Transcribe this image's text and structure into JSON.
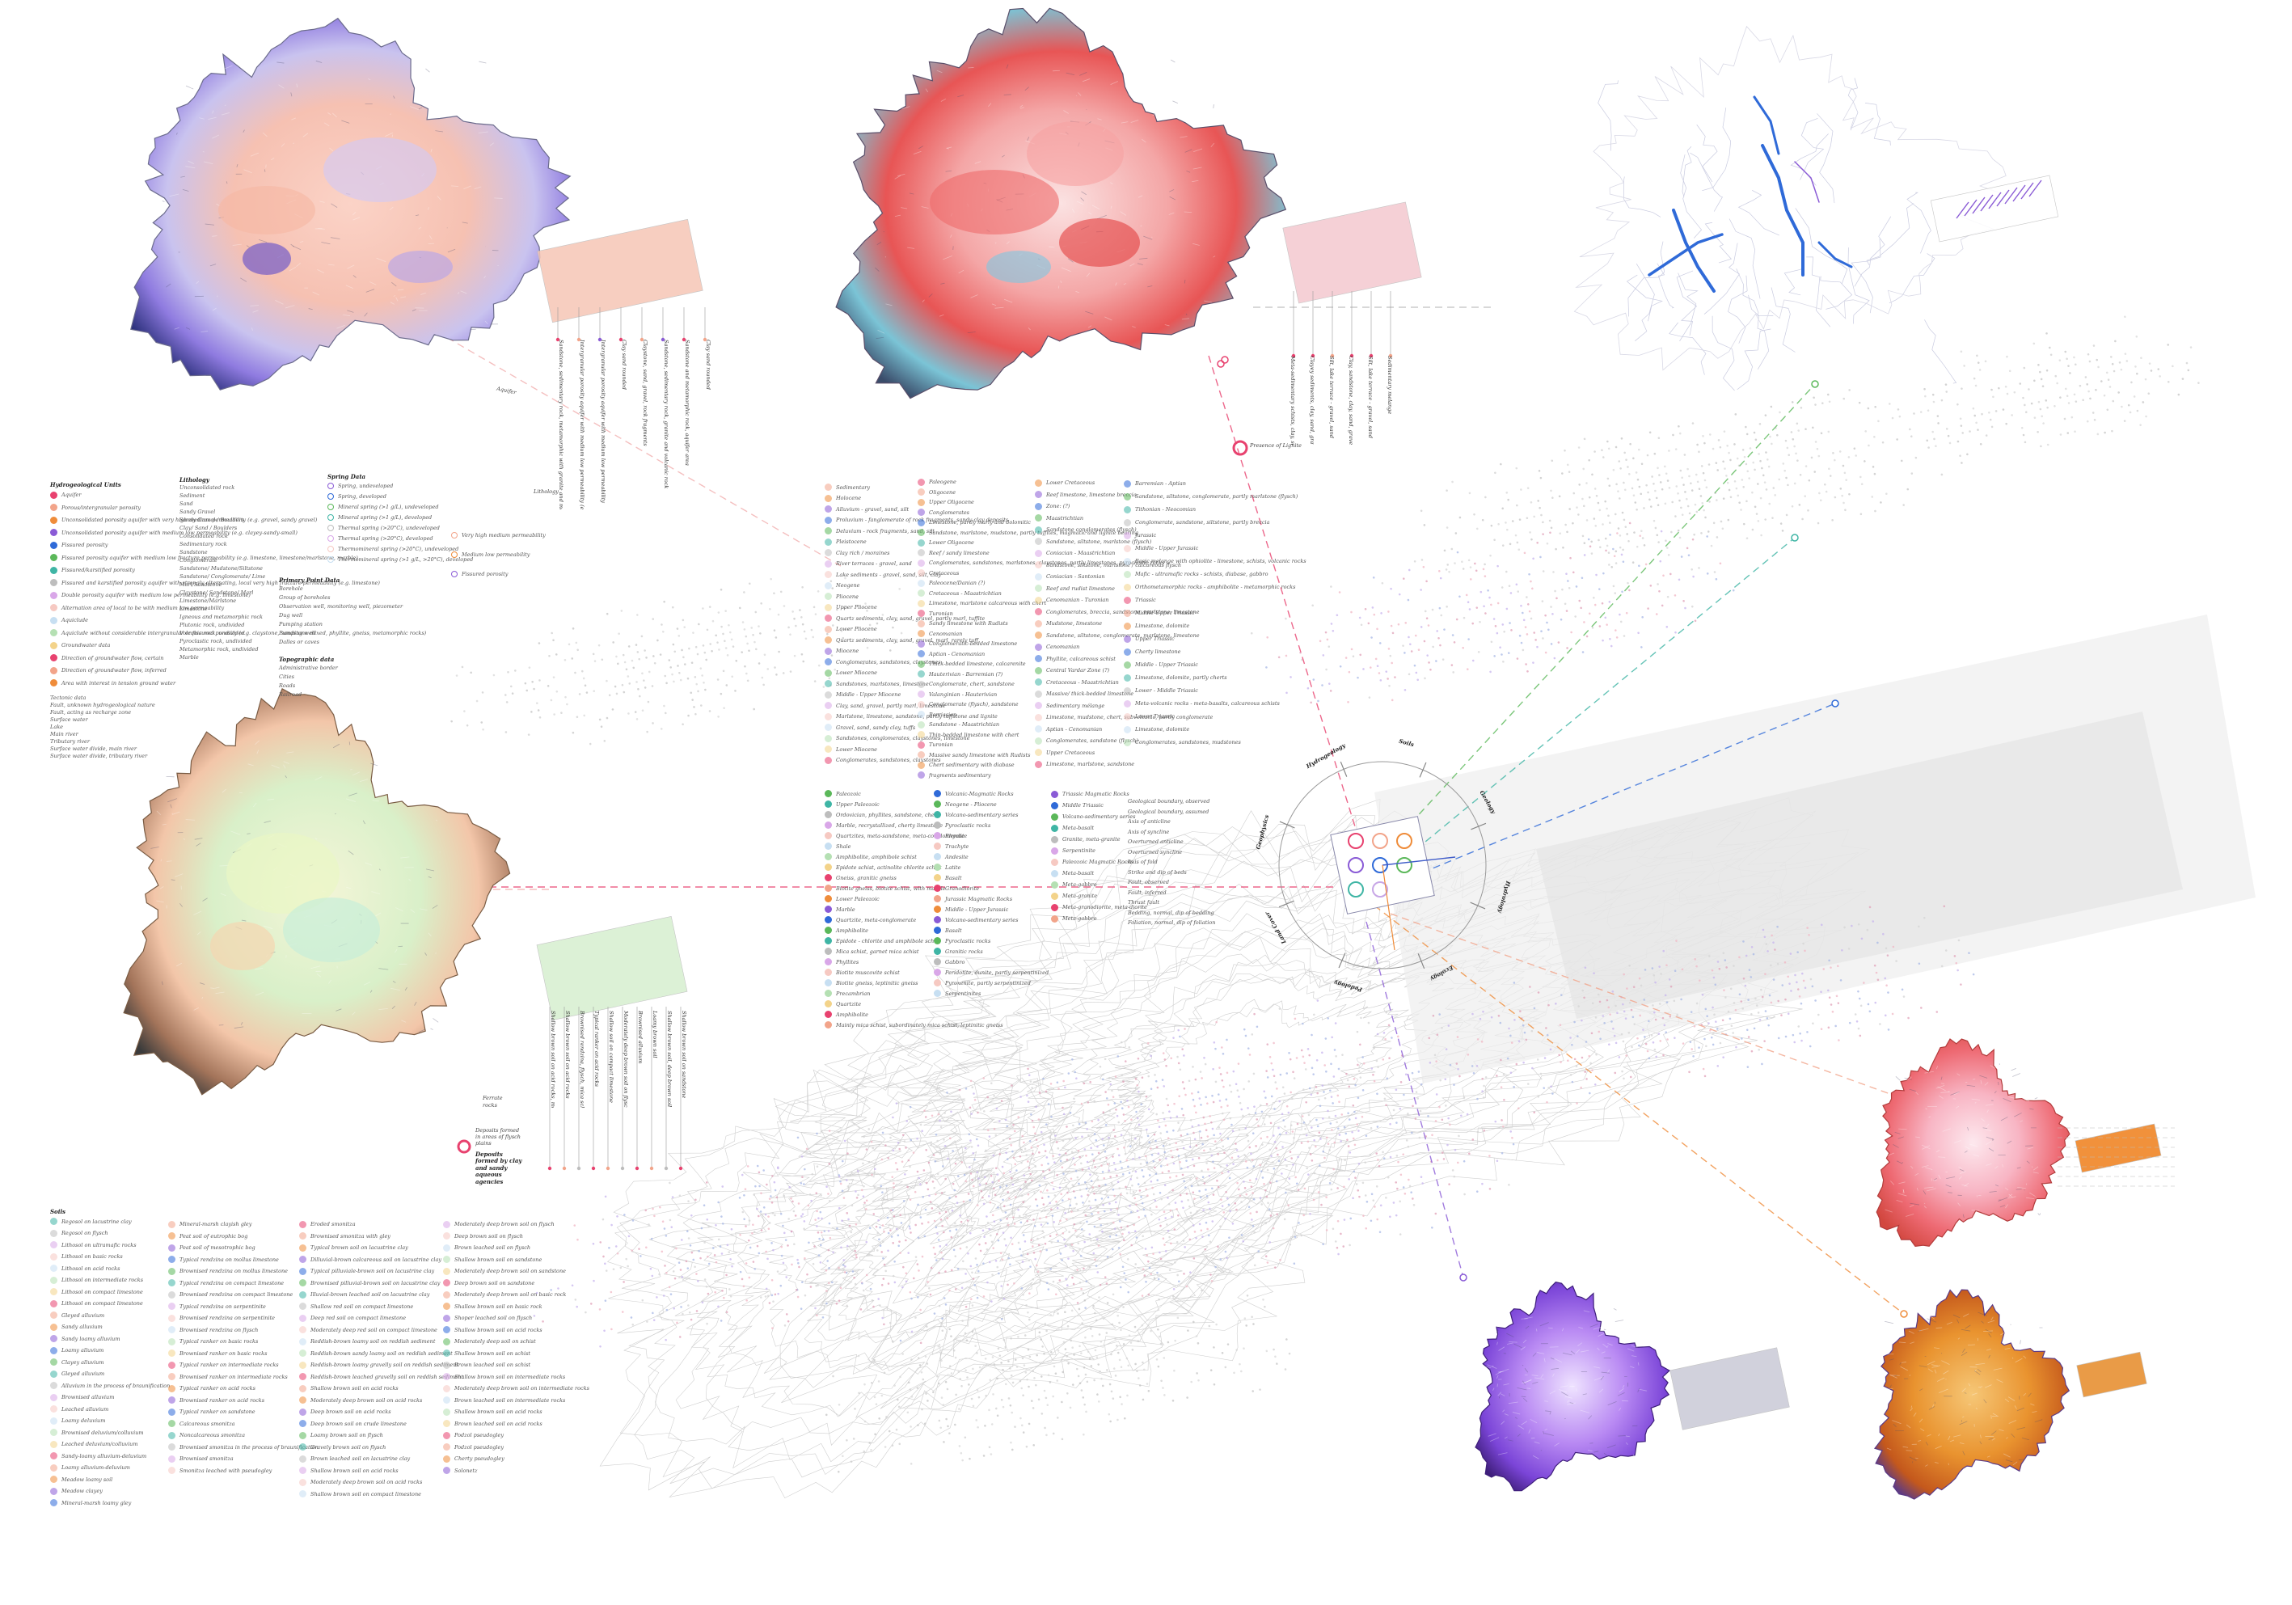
{
  "colors": {
    "pink": "#e8426f",
    "salmon": "#f2a48a",
    "orange": "#ef8c3a",
    "purple": "#8a5bd6",
    "blue": "#2f6ad8",
    "green": "#5bb85a",
    "teal": "#3fb5a5",
    "grey": "#bdbdbd"
  },
  "hydro": {
    "title": "Hydrogeological Units",
    "items": [
      "Aquifer",
      "Porous/intergranular porosity",
      "Unconsolidated porosity aquifer with very high medium permeability (e.g. gravel, sandy gravel)",
      "Unconsolidated porosity aquifer with medium low permeability (e.g. clayey-sandy-small)",
      "Fissured porosity",
      "Fissured porosity aquifer with medium low fracture permeability (e.g. limestone, limestone/marlstone, marble)",
      "Fissured/karstified porosity",
      "Fissured and karstified porosity aquifer with strongly alternating, local very high fracture permeability (e.g. limestone)",
      "Double porosity aquifer with medium low permeability (e.g. limestone)",
      "Alternation area of local to be with medium low permeability",
      "Aquiclude",
      "Aquiclude without considerable intergranular or fissured porosity (e.g. claystone, sandstone mixed, phyllite, gneiss, metamorphic rocks)",
      "Groundwater data",
      "Direction of groundwater flow, certain",
      "Direction of groundwater flow, inferred",
      "Area with interest in tension ground water"
    ]
  },
  "surface": {
    "items": [
      "Tectonic data",
      "Fault, unknown hydrogeological nature",
      "Fault, acting as recharge zone",
      "Surface water",
      "Lake",
      "Main river",
      "Tributary river",
      "Surface water divide, main river",
      "Surface water divide, tributary river"
    ]
  },
  "lithology": {
    "title": "Lithology",
    "items": [
      "Unconsolidated rock",
      "Sediment",
      "Sand",
      "Sandy Gravel",
      "Sandy Gravel / Boulders",
      "Clay/ Sand / Boulders",
      "Consolidated rock",
      "Sedimentary rock",
      "Sandstone",
      "Conglomerate",
      "Sandstone/ Mudstone/Siltstone",
      "Sandstone/ Conglomerate/ Lime",
      "Marl/Sandstone",
      "Claystone/ Sandstone/ Marl",
      "Limestone/Marlstone",
      "Limestone",
      "Igneous and metamorphic rock",
      "Plutonic rock, undivided",
      "Volcanic rock, undivided",
      "Pyroclastic rock, undivided",
      "Metamorphic rock, undivided",
      "Marble"
    ]
  },
  "springs": {
    "title": "Spring Data",
    "items": [
      "Spring, undeveloped",
      "Spring, developed",
      "Mineral spring (>1 g/L), undeveloped",
      "Mineral spring (>1 g/L), developed",
      "Thermal spring (>20°C), undeveloped",
      "Thermal spring (>20°C), developed",
      "Thermomineral spring (>20°C), undeveloped",
      "Thermomineral spring (>1 g/L, >20°C), developed"
    ]
  },
  "primary": {
    "title": "Primary Point Data",
    "items": [
      "Borehole",
      "Group of boreholes",
      "Observation well, monitoring well, piezometer",
      "Dug well",
      "Pumping station",
      "Pumping well",
      "Dalles or caves"
    ]
  },
  "topo": {
    "title": "Topographic data",
    "items": [
      "Administrative border",
      "Cities",
      "Roads",
      "Railroad"
    ]
  },
  "sideLegendTop": {
    "items": [
      "Very high medium permeability",
      "Medium low permeability",
      "Fissured porosity"
    ]
  },
  "geology": {
    "col1": [
      "Sedimentary",
      "Holocene",
      "Alluvium - gravel, sand, silt",
      "Proluvium - fanglomerate of rock fragments, sandy clay deposits",
      "Deluvium - rock fragments, sand, silt",
      "Pleistocene",
      "Clay rich / moraines",
      "River terraces - gravel, sand",
      "Lake sediments - gravel, sand, silt, clay",
      "Neogene",
      "Pliocene",
      "Upper Pliocene",
      "Quartz sediments, clay, sand, gravel, partly marl, tuffite",
      "Lower Pliocene",
      "Quartz sediments, clay, sand, gravel, marl, rarely tuff",
      "Miocene",
      "Conglomerates, sandstones, claystones",
      "Lower Miocene",
      "Sandstones, marlstones, limestone",
      "Middle - Upper Miocene",
      "Clay, sand, gravel, partly marl, limestone",
      "Marlstone, limestone, sandstone, partly tuffstone and lignite",
      "Gravel, sand, sandy clay, tuffs",
      "Sandstones, conglomerates, claystones, limestone",
      "Lower Miocene",
      "Conglomerates, sandstones, claystones"
    ],
    "col2": [
      "Paleogene",
      "Oligocene",
      "Upper Oligocene",
      "Conglomerates",
      "Limestone, partly marly and dolomitic",
      "Sandstone, marlstone, mudstone, partly tuffites, magmatic and lignite bearing",
      "Lower Oligocene",
      "Reef / sandy limestone",
      "Conglomerates, sandstones, marlstones, claystones, partly limestones, pyroclastic rocks",
      "Cretaceous",
      "Paleocene/Danian (?)",
      "Cretaceous - Maastrichtian",
      "Limestone, marlstone calcareous with chert",
      "Turonian",
      "Sandy limestone with Rudists",
      "Cenomanian",
      "Conglomeratic-bedded limestone",
      "Aptian - Cenomanian",
      "Thick-bedded limestone, calcarenite",
      "Hauterivian - Barremian (?)",
      "Conglomerate, chert, sandstone",
      "Valanginian - Hauterivian",
      "Conglomerate (flysch), sandstone",
      "Berriasian",
      "Sandstone - Maastrichtian",
      "Thin-bedded limestone with chert",
      "Turonian",
      "Massive sandy limestone with Rudists",
      "Chert sedimentary with diabase",
      "fragments sedimentary"
    ],
    "col3": [
      "Lower Cretaceous",
      "Reef limestone, limestone breccia",
      "Zone: (?)",
      "Maastrichtian",
      "Sandstone conglomerates (flysch)",
      "Sandstone, siltstone, marlstone (flysch)",
      "Coniacian - Maastrichtian",
      "Sandstone, siltstone, marlstone / calcareous flysch",
      "Coniacian - Santonian",
      "Reef and rudist limestone",
      "Cenomanian - Turonian",
      "Conglomerates, breccia, sandstone, marlstone, limestone",
      "Mudstone, limestone",
      "Sandstone, siltstone, conglomerate, marlstone, limestone",
      "Cenomanian",
      "Phyllite, calcareous schist",
      "Central Vardar Zone (?)",
      "Cretaceous - Maastrichtian",
      "Massive/ thick-bedded limestone",
      "Sedimentary mélange",
      "Limestone, mudstone, chert, subvolcanic, partly conglomerate",
      "Aptian - Cenomanian",
      "Conglomerates, sandstone (flysch)",
      "Upper Cretaceous",
      "Limestone, marlstone, sandstone"
    ],
    "col4": [
      "Barremian - Aptian",
      "Sandstone, siltstone, conglomerate, partly marlstone (flysch)",
      "Tithonian - Neocomian",
      "Conglomerate, sandstone, siltstone, partly breccia",
      "Jurassic",
      "Middle - Upper Jurassic",
      "Basic melange with ophiolite - limestone, schists, volcanic rocks",
      "Mafic - ultramafic rocks - schists, diabase, gabbro",
      "Orthometamorphic rocks - amphibolite - metamorphic rocks",
      "Triassic",
      "Middle Upper Triassic",
      "Limestone, dolomite",
      "Upper Triassic",
      "Cherty limestone",
      "Middle - Upper Triassic",
      "Limestone, dolomite, partly cherts",
      "Lower - Middle Triassic",
      "Meta-volcanic rocks - meta-basalts, calcareous schists",
      "Lower Triassic",
      "Limestone, dolomite",
      "Conglomerates, sandstones, mudstones"
    ]
  },
  "paleo": {
    "col1": [
      "Paleozoic",
      "Upper Paleozoic",
      "Ordovician, phyllites, sandstone, chert",
      "Marble, recrystallized, cherty limestone",
      "Quartzites, meta-sandstone, meta-conglomerate",
      "Shale",
      "Amphibolite, amphibole schist",
      "Epidote schist, actinolite chlorite schist",
      "Gneiss, granitic gneiss",
      "Biotite gneiss, biotite schist, with marble",
      "Lower Paleozoic",
      "Marble",
      "Quartzite, meta-conglomerate",
      "Amphibolite",
      "Epidote - chlorite and amphibole schist",
      "Mica schist, garnet mica schist",
      "Phyllites",
      "Biotite muscovite schist",
      "Biotite gneiss, leptinitic gneiss",
      "Precambrian",
      "Quartzite",
      "Amphibolite",
      "Mainly mica schist, subordinately mica schist, leptinitic gneiss"
    ],
    "col2": [
      "Volcanic-Magmatic Rocks",
      "Neogene - Pliocene",
      "Volcano-sedimentary series",
      "Pyroclastic rocks",
      "Rhyolite",
      "Trachyte",
      "Andesite",
      "Latite",
      "Basalt",
      "Granodiorite",
      "Jurassic Magmatic Rocks",
      "Middle - Upper Jurassic",
      "Volcano-sedimentary series",
      "Basalt",
      "Pyroclastic rocks",
      "Granitic rocks",
      "Gabbro",
      "Peridotite, dunite, partly serpentinized",
      "Pyroxenite, partly serpentinized",
      "Serpentinites"
    ],
    "col3": [
      "Triassic Magmatic Rocks",
      "Middle Triassic",
      "Volcano-sedimentary series",
      "Meta-basalt",
      "Granite, meta-granite",
      "Serpentinite",
      "Paleozoic Magmatic Rocks",
      "Meta-basalt",
      "Meta-gabbro",
      "Meta-granite",
      "Meta-granodiorite, meta-diorite",
      "Meta-gabbro"
    ],
    "col4": [
      "Geological boundary, observed",
      "Geological boundary, assumed",
      "Axis of anticline",
      "Axis of syncline",
      "Overturned anticline",
      "Overturned syncline",
      "Axis of fold",
      "Strike and dip of beds",
      "Fault, observed",
      "Fault, inferred",
      "Thrust fault",
      "Bedding, normal, dip of bedding",
      "Foliation, normal, dip of foliation"
    ]
  },
  "soils": {
    "title": "Soils",
    "col1": [
      "Regosol on lacustrine clay",
      "Regosol on flysch",
      "Lithosol on ultramafic rocks",
      "Lithosol on basic rocks",
      "Lithosol on acid rocks",
      "Lithosol on intermediate rocks",
      "Lithosol on compact limestone",
      "Lithosol on compact limestone",
      "Gleyed alluvium",
      "Sandy alluvium",
      "Sandy loamy alluvium",
      "Loamy alluvium",
      "Clayey alluvium",
      "Gleyed alluvium",
      "Alluvium in the process of braunification",
      "Brownised alluvium",
      "Leached alluvium",
      "Loamy deluvium",
      "Brownised deluvium/colluvium",
      "Leached deluvium/colluvium",
      "Sandy-loamy alluvium-deluvium",
      "Loamy alluvium-deluvium",
      "Meadow loamy soil",
      "Meadow clayey",
      "Mineral-marsh loamy gley"
    ],
    "col2": [
      "Mineral-marsh clayish gley",
      "Peat soil of eutrophic bog",
      "Peat soil of mesotrophic bog",
      "Typical rendzina on mollus limestone",
      "Brownised rendzina on mollus limestone",
      "Typical rendzina on compact limestone",
      "Brownised rendzina on compact limestone",
      "Typical rendzina on serpentinite",
      "Brownised rendzina on serpentinite",
      "Brownised rendzina on flysch",
      "Typical ranker on basic rocks",
      "Brownised ranker on basic rocks",
      "Typical ranker on intermediate rocks",
      "Brownised ranker on intermediate rocks",
      "Typical ranker on acid rocks",
      "Brownised ranker on acid rocks",
      "Typical ranker on sandstone",
      "Calcareous smonitza",
      "Noncalcareous smonitza",
      "Brownised smonitza in the process of braunification",
      "Brownised smonitza",
      "Smonitza leached with pseudogley"
    ],
    "col3": [
      "Eroded smonitza",
      "Brownised smonitza with gley",
      "Typical brown soil on lacustrine clay",
      "Dilluvial-brown calcareous soil on lacustrine clay",
      "Typical pilluviale-brown soil on lacustrine clay",
      "Brownised pilluvial-brown soil on lacustrine clay",
      "Illuvial-brown leached soil on lacustrine clay",
      "Shallow red soil on compact limestone",
      "Deep red soil on compact limestone",
      "Moderately deep red soil on compact limestone",
      "Reddish-brown loamy soil on reddish sediment",
      "Reddish-brown sandy loamy soil on reddish sediment",
      "Reddish-brown loamy gravelly soil on reddish sediment",
      "Reddish-brown leached gravelly soil on reddish sediment",
      "Shallow brown soil on acid rocks",
      "Moderately deep brown soil on acid rocks",
      "Deep brown soil on acid rocks",
      "Deep brown soil on crude limestone",
      "Loamy brown soil on flysch",
      "Gravely brown soil on flysch",
      "Brown leached soil on lacustrine clay",
      "Shallow brown soil on acid rocks",
      "Moderately deep brown soil on acid rocks",
      "Shallow brown soil on compact limestone"
    ],
    "col4": [
      "Moderately deep brown soil on flysch",
      "Deep brown soil on flysch",
      "Brown leached soil on flysch",
      "Shallow brown soil on sandstone",
      "Moderately deep brown soil on sandstone",
      "Deep brown soil on sandstone",
      "Moderately deep brown soil on basic rock",
      "Shallow brown soil on basic rock",
      "Shoper leached soil on flysch",
      "Shallow brown soil on acid rocks",
      "Moderately deep soil on schist",
      "Shallow brown soil on schist",
      "Brown leached soil on schist",
      "Shallow brown soil on intermediate rocks",
      "Moderately deep brown soil on intermediate rocks",
      "Brown leached soil on intermediate rocks",
      "Shallow brown soil on acid rocks",
      "Brown leached soil on acid rocks",
      "Podzol pseudogley",
      "Podzol pseudogley",
      "Cherty pseudogley",
      "Solonetz"
    ]
  },
  "labels": {
    "aquifer": "Aquifer",
    "lithology": "Lithology",
    "presenceLignite": "Presence of Lignite",
    "ferrate": "Ferrate",
    "ferrateNote": "rocks",
    "depositsA": "Deposits formed in areas of flysch plains",
    "depositsB": "Deposits formed by clay and sandy aqueous agencies"
  },
  "midVert": [
    "Sandstone, sedimentary rock, metamorphic with granite and metamorphic rock",
    "Intergranular porosity aquifer with medium low permeability (e.g. clayey-sandy-small)",
    "Intergranular porosity aquifer with medium low permeability",
    "Clay sand rounded",
    "Claystone, sand, gravel, rock fragments",
    "Sandstone, sedimentary rock, granite and volcanic rock",
    "Sandstone and metamorphic rock, aquifer area",
    "Clay sand rounded"
  ],
  "rightVert": [
    "Meta-sedimentary schists, clay, sand, gravel with conglomerates",
    "Clayey sediments, clay, sand, gravel, marl, conglomerate",
    "Silt, lake terrace - gravel, sand",
    "Clay, sandstone, clay, sand, gravel, marl, conglomerate",
    "Silt, lake terrace - gravel, sand",
    "Sedimentary melange"
  ],
  "lowerVert": [
    "Shallow brown soil on acid rocks, moderately deep soil",
    "Shallow brown soil on acid rocks",
    "Brownised rendzina, flysch, mica schist",
    "Typical ranker on acid rocks",
    "Shallow soil on compact limestone",
    "Moderately deep brown soil on flysch",
    "Brownised alluvium",
    "Loamy brown soil",
    "Shallow brown soil, deep brown soil",
    "Shallow brown soil on sandstone"
  ],
  "compass": {
    "labels": [
      "Hydrogeology",
      "Soils",
      "Geology",
      "Hydrology",
      "Ecology",
      "Pedology",
      "Land Cover",
      "Geophysics"
    ]
  }
}
